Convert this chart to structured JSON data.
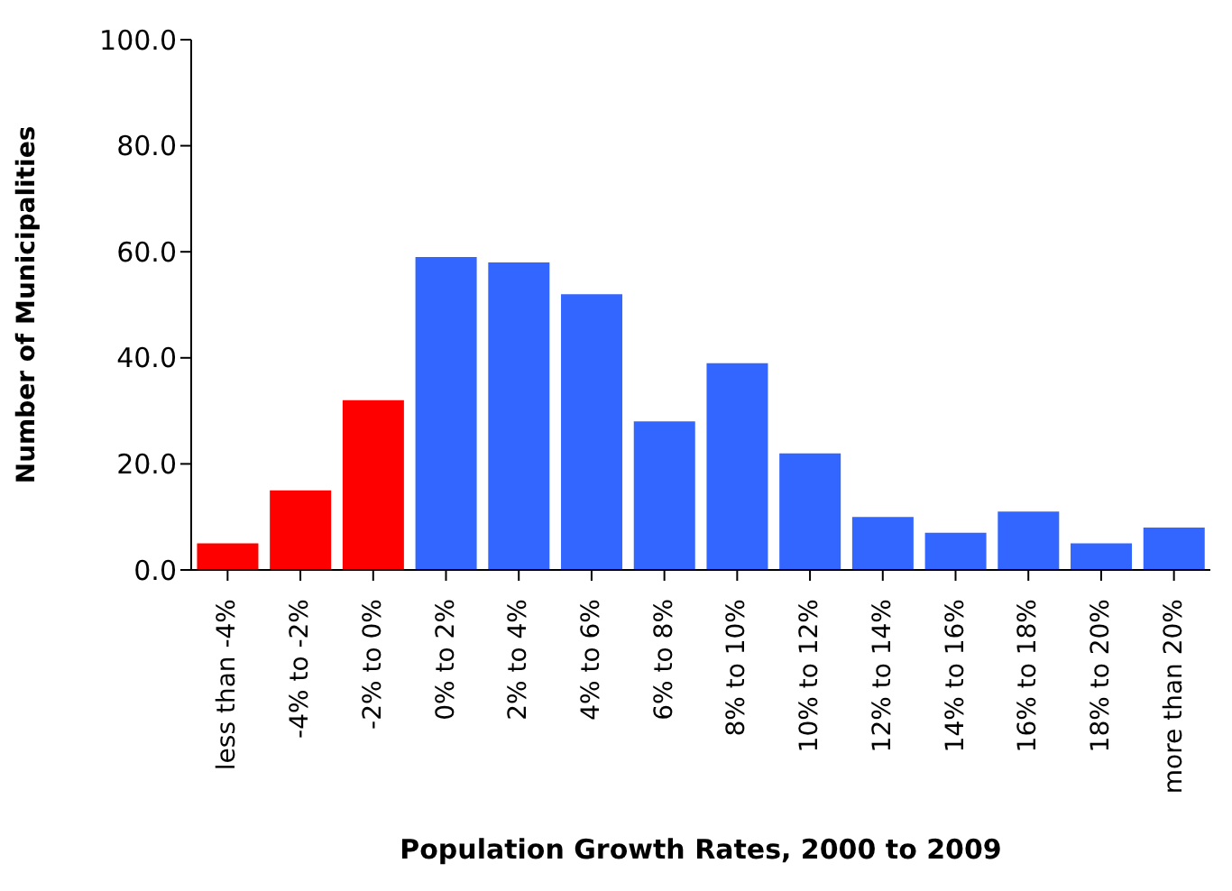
{
  "chart_data": {
    "type": "bar",
    "xlabel": "Population Growth Rates, 2000 to 2009",
    "ylabel": "Number of Municipalities",
    "categories": [
      "less than -4%",
      "-4% to -2%",
      "-2% to 0%",
      "0% to 2%",
      "2% to 4%",
      "4% to 6%",
      "6% to 8%",
      "8% to 10%",
      "10% to 12%",
      "12% to 14%",
      "14% to 16%",
      "16% to 18%",
      "18% to 20%",
      "more than 20%"
    ],
    "values": [
      5,
      15,
      32,
      59,
      58,
      52,
      28,
      39,
      22,
      10,
      7,
      11,
      5,
      8
    ],
    "colors": [
      "#ff0000",
      "#ff0000",
      "#ff0000",
      "#3366ff",
      "#3366ff",
      "#3366ff",
      "#3366ff",
      "#3366ff",
      "#3366ff",
      "#3366ff",
      "#3366ff",
      "#3366ff",
      "#3366ff",
      "#3366ff"
    ],
    "ylim": [
      0,
      100
    ],
    "yticks": [
      {
        "value": 0,
        "label": "0.0"
      },
      {
        "value": 20,
        "label": "20.0"
      },
      {
        "value": 40,
        "label": "40.0"
      },
      {
        "value": 60,
        "label": "60.0"
      },
      {
        "value": 80,
        "label": "80.0"
      },
      {
        "value": 100,
        "label": "100.0"
      }
    ],
    "grid": false
  }
}
